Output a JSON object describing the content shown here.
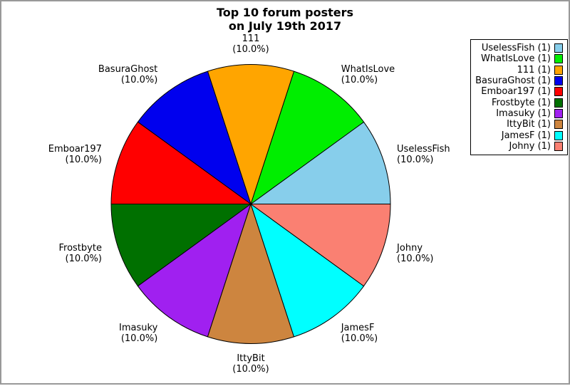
{
  "chart_data": {
    "type": "pie",
    "title_lines": [
      "Top 10 forum posters",
      "on July 19th 2017"
    ],
    "direction": "counterclockwise",
    "start_angle_deg": 0,
    "legend_position": "upper right",
    "background_color": "#FFFFFF",
    "frame_border_color": "#999999",
    "slice_border_color": "#000000",
    "slices": [
      {
        "label": "UselessFish",
        "value": 1,
        "pct": 10.0,
        "pct_label": "(10.0%)",
        "legend_label": "UselessFish (1)",
        "color": "#87CEEB"
      },
      {
        "label": "WhatIsLove",
        "value": 1,
        "pct": 10.0,
        "pct_label": "(10.0%)",
        "legend_label": "WhatIsLove (1)",
        "color": "#00EE00"
      },
      {
        "label": "111",
        "value": 1,
        "pct": 10.0,
        "pct_label": "(10.0%)",
        "legend_label": "111 (1)",
        "color": "#FFA500"
      },
      {
        "label": "BasuraGhost",
        "value": 1,
        "pct": 10.0,
        "pct_label": "(10.0%)",
        "legend_label": "BasuraGhost (1)",
        "color": "#0000EE"
      },
      {
        "label": "Emboar197",
        "value": 1,
        "pct": 10.0,
        "pct_label": "(10.0%)",
        "legend_label": "Emboar197 (1)",
        "color": "#FF0000"
      },
      {
        "label": "Frostbyte",
        "value": 1,
        "pct": 10.0,
        "pct_label": "(10.0%)",
        "legend_label": "Frostbyte (1)",
        "color": "#007000"
      },
      {
        "label": "Imasuky",
        "value": 1,
        "pct": 10.0,
        "pct_label": "(10.0%)",
        "legend_label": "Imasuky (1)",
        "color": "#A020F0"
      },
      {
        "label": "IttyBit",
        "value": 1,
        "pct": 10.0,
        "pct_label": "(10.0%)",
        "legend_label": "IttyBit (1)",
        "color": "#CD853F"
      },
      {
        "label": "JamesF",
        "value": 1,
        "pct": 10.0,
        "pct_label": "(10.0%)",
        "legend_label": "JamesF (1)",
        "color": "#00FFFF"
      },
      {
        "label": "Johny",
        "value": 1,
        "pct": 10.0,
        "pct_label": "(10.0%)",
        "legend_label": "Johny (1)",
        "color": "#FA8072"
      }
    ]
  }
}
